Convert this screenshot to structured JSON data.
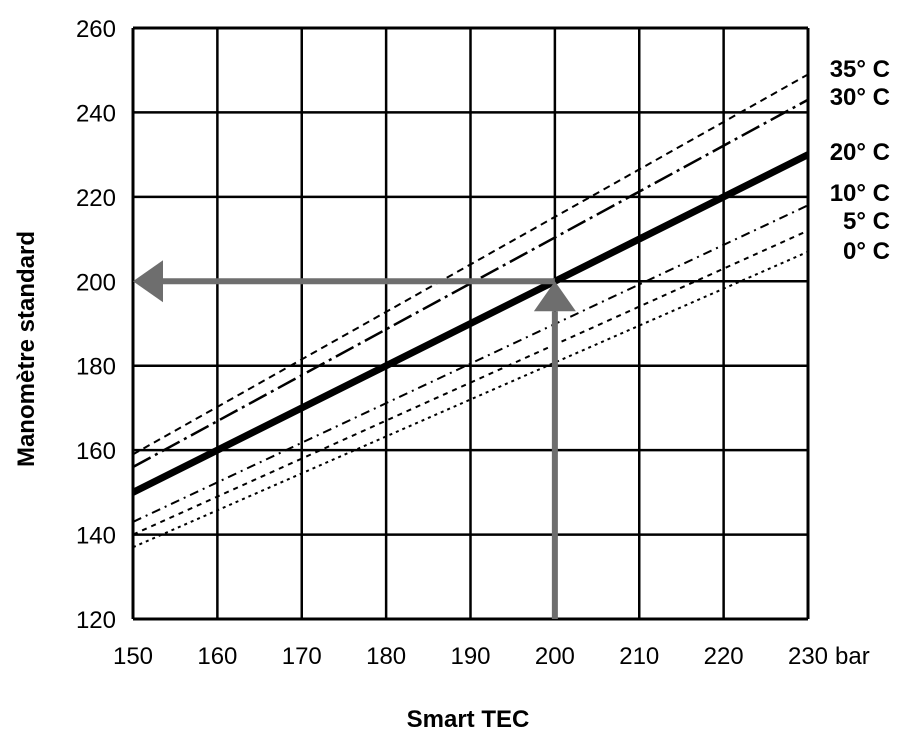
{
  "chart_data": {
    "type": "line",
    "title": "",
    "xlabel": "Smart TEC",
    "ylabel": "Manomètre standard",
    "x_unit": "bar",
    "xlim": [
      150,
      230
    ],
    "ylim": [
      120,
      260
    ],
    "x_ticks": [
      150,
      160,
      170,
      180,
      190,
      200,
      210,
      220,
      230
    ],
    "y_ticks": [
      120,
      140,
      160,
      180,
      200,
      220,
      240,
      260
    ],
    "grid": true,
    "series": [
      {
        "name": "35° C",
        "style": "dashed",
        "x": [
          150,
          230
        ],
        "y": [
          159,
          249
        ]
      },
      {
        "name": "30° C",
        "style": "dash-dot",
        "x": [
          150,
          230
        ],
        "y": [
          156,
          243
        ]
      },
      {
        "name": "20° C",
        "style": "solid-bold",
        "x": [
          150,
          230
        ],
        "y": [
          150,
          230
        ]
      },
      {
        "name": "10° C",
        "style": "dash-dot-fine",
        "x": [
          150,
          230
        ],
        "y": [
          143,
          218
        ]
      },
      {
        "name": "5° C",
        "style": "dashed-fine",
        "x": [
          150,
          230
        ],
        "y": [
          140,
          212
        ]
      },
      {
        "name": "0° C",
        "style": "dotted",
        "x": [
          150,
          230
        ],
        "y": [
          137,
          207
        ]
      }
    ],
    "annotations": [
      {
        "type": "arrow",
        "from": [
          200,
          120
        ],
        "to": [
          200,
          200
        ],
        "color": "#6e6e6e"
      },
      {
        "type": "arrow",
        "from": [
          200,
          200
        ],
        "to": [
          150,
          200
        ],
        "color": "#6e6e6e"
      }
    ],
    "colors": {
      "line": "#000000",
      "arrow": "#6e6e6e",
      "grid": "#000000"
    }
  }
}
